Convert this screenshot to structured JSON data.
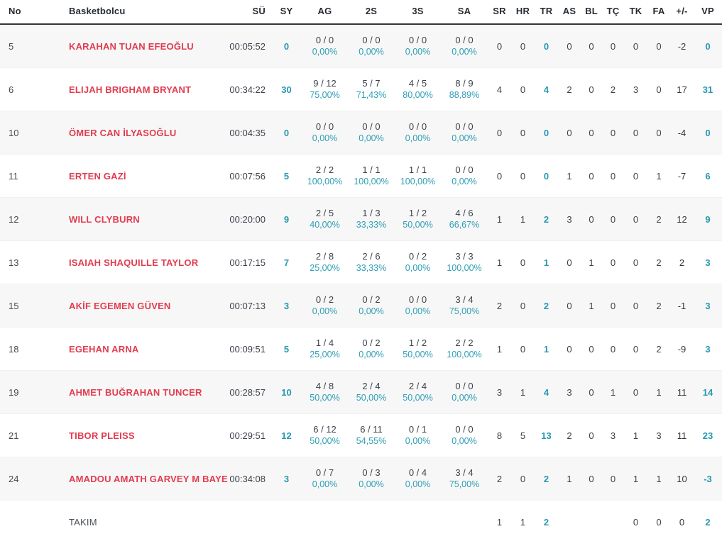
{
  "colors": {
    "accent_teal": "#2798b0",
    "percentage_teal": "#2f9fb6",
    "player_name_red": "#e23c50",
    "text_dark": "#3c414b",
    "header_text": "#262b33",
    "header_border": "#33343a",
    "row_alt_background": "#f7f7f7"
  },
  "table": {
    "columns": [
      {
        "key": "no",
        "label": "No"
      },
      {
        "key": "name",
        "label": "Basketbolcu"
      },
      {
        "key": "su",
        "label": "SÜ"
      },
      {
        "key": "sy",
        "label": "SY"
      },
      {
        "key": "ag",
        "label": "AG"
      },
      {
        "key": "s2",
        "label": "2S"
      },
      {
        "key": "s3",
        "label": "3S"
      },
      {
        "key": "sa",
        "label": "SA"
      },
      {
        "key": "sr",
        "label": "SR"
      },
      {
        "key": "hr",
        "label": "HR"
      },
      {
        "key": "tr",
        "label": "TR"
      },
      {
        "key": "as",
        "label": "AS"
      },
      {
        "key": "bl",
        "label": "BL"
      },
      {
        "key": "tc",
        "label": "TÇ"
      },
      {
        "key": "tk",
        "label": "TK"
      },
      {
        "key": "fa",
        "label": "FA"
      },
      {
        "key": "pm",
        "label": "+/-"
      },
      {
        "key": "vp",
        "label": "VP"
      }
    ],
    "rows": [
      {
        "type": "player",
        "no": "5",
        "name": "KARAHAN TUAN EFEOĞLU",
        "su": "00:05:52",
        "sy": "0",
        "ag": {
          "made": "0 / 0",
          "pct": "0,00%"
        },
        "s2": {
          "made": "0 / 0",
          "pct": "0,00%"
        },
        "s3": {
          "made": "0 / 0",
          "pct": "0,00%"
        },
        "sa": {
          "made": "0 / 0",
          "pct": "0,00%"
        },
        "sr": "0",
        "hr": "0",
        "tr": "0",
        "as": "0",
        "bl": "0",
        "tc": "0",
        "tk": "0",
        "fa": "0",
        "pm": "-2",
        "vp": "0"
      },
      {
        "type": "player",
        "no": "6",
        "name": "ELIJAH BRIGHAM BRYANT",
        "su": "00:34:22",
        "sy": "30",
        "ag": {
          "made": "9 / 12",
          "pct": "75,00%"
        },
        "s2": {
          "made": "5 / 7",
          "pct": "71,43%"
        },
        "s3": {
          "made": "4 / 5",
          "pct": "80,00%"
        },
        "sa": {
          "made": "8 / 9",
          "pct": "88,89%"
        },
        "sr": "4",
        "hr": "0",
        "tr": "4",
        "as": "2",
        "bl": "0",
        "tc": "2",
        "tk": "3",
        "fa": "0",
        "pm": "17",
        "vp": "31"
      },
      {
        "type": "player",
        "no": "10",
        "name": "ÖMER CAN İLYASOĞLU",
        "su": "00:04:35",
        "sy": "0",
        "ag": {
          "made": "0 / 0",
          "pct": "0,00%"
        },
        "s2": {
          "made": "0 / 0",
          "pct": "0,00%"
        },
        "s3": {
          "made": "0 / 0",
          "pct": "0,00%"
        },
        "sa": {
          "made": "0 / 0",
          "pct": "0,00%"
        },
        "sr": "0",
        "hr": "0",
        "tr": "0",
        "as": "0",
        "bl": "0",
        "tc": "0",
        "tk": "0",
        "fa": "0",
        "pm": "-4",
        "vp": "0"
      },
      {
        "type": "player",
        "no": "11",
        "name": "ERTEN GAZİ",
        "su": "00:07:56",
        "sy": "5",
        "ag": {
          "made": "2 / 2",
          "pct": "100,00%"
        },
        "s2": {
          "made": "1 / 1",
          "pct": "100,00%"
        },
        "s3": {
          "made": "1 / 1",
          "pct": "100,00%"
        },
        "sa": {
          "made": "0 / 0",
          "pct": "0,00%"
        },
        "sr": "0",
        "hr": "0",
        "tr": "0",
        "as": "1",
        "bl": "0",
        "tc": "0",
        "tk": "0",
        "fa": "1",
        "pm": "-7",
        "vp": "6"
      },
      {
        "type": "player",
        "no": "12",
        "name": "WILL CLYBURN",
        "su": "00:20:00",
        "sy": "9",
        "ag": {
          "made": "2 / 5",
          "pct": "40,00%"
        },
        "s2": {
          "made": "1 / 3",
          "pct": "33,33%"
        },
        "s3": {
          "made": "1 / 2",
          "pct": "50,00%"
        },
        "sa": {
          "made": "4 / 6",
          "pct": "66,67%"
        },
        "sr": "1",
        "hr": "1",
        "tr": "2",
        "as": "3",
        "bl": "0",
        "tc": "0",
        "tk": "0",
        "fa": "2",
        "pm": "12",
        "vp": "9"
      },
      {
        "type": "player",
        "no": "13",
        "name": "ISAIAH SHAQUILLE TAYLOR",
        "su": "00:17:15",
        "sy": "7",
        "ag": {
          "made": "2 / 8",
          "pct": "25,00%"
        },
        "s2": {
          "made": "2 / 6",
          "pct": "33,33%"
        },
        "s3": {
          "made": "0 / 2",
          "pct": "0,00%"
        },
        "sa": {
          "made": "3 / 3",
          "pct": "100,00%"
        },
        "sr": "1",
        "hr": "0",
        "tr": "1",
        "as": "0",
        "bl": "1",
        "tc": "0",
        "tk": "0",
        "fa": "2",
        "pm": "2",
        "vp": "3"
      },
      {
        "type": "player",
        "no": "15",
        "name": "AKİF EGEMEN GÜVEN",
        "su": "00:07:13",
        "sy": "3",
        "ag": {
          "made": "0 / 2",
          "pct": "0,00%"
        },
        "s2": {
          "made": "0 / 2",
          "pct": "0,00%"
        },
        "s3": {
          "made": "0 / 0",
          "pct": "0,00%"
        },
        "sa": {
          "made": "3 / 4",
          "pct": "75,00%"
        },
        "sr": "2",
        "hr": "0",
        "tr": "2",
        "as": "0",
        "bl": "1",
        "tc": "0",
        "tk": "0",
        "fa": "2",
        "pm": "-1",
        "vp": "3"
      },
      {
        "type": "player",
        "no": "18",
        "name": "EGEHAN ARNA",
        "su": "00:09:51",
        "sy": "5",
        "ag": {
          "made": "1 / 4",
          "pct": "25,00%"
        },
        "s2": {
          "made": "0 / 2",
          "pct": "0,00%"
        },
        "s3": {
          "made": "1 / 2",
          "pct": "50,00%"
        },
        "sa": {
          "made": "2 / 2",
          "pct": "100,00%"
        },
        "sr": "1",
        "hr": "0",
        "tr": "1",
        "as": "0",
        "bl": "0",
        "tc": "0",
        "tk": "0",
        "fa": "2",
        "pm": "-9",
        "vp": "3"
      },
      {
        "type": "player",
        "no": "19",
        "name": "AHMET BUĞRAHAN TUNCER",
        "su": "00:28:57",
        "sy": "10",
        "ag": {
          "made": "4 / 8",
          "pct": "50,00%"
        },
        "s2": {
          "made": "2 / 4",
          "pct": "50,00%"
        },
        "s3": {
          "made": "2 / 4",
          "pct": "50,00%"
        },
        "sa": {
          "made": "0 / 0",
          "pct": "0,00%"
        },
        "sr": "3",
        "hr": "1",
        "tr": "4",
        "as": "3",
        "bl": "0",
        "tc": "1",
        "tk": "0",
        "fa": "1",
        "pm": "11",
        "vp": "14"
      },
      {
        "type": "player",
        "no": "21",
        "name": "TIBOR PLEISS",
        "su": "00:29:51",
        "sy": "12",
        "ag": {
          "made": "6 / 12",
          "pct": "50,00%"
        },
        "s2": {
          "made": "6 / 11",
          "pct": "54,55%"
        },
        "s3": {
          "made": "0 / 1",
          "pct": "0,00%"
        },
        "sa": {
          "made": "0 / 0",
          "pct": "0,00%"
        },
        "sr": "8",
        "hr": "5",
        "tr": "13",
        "as": "2",
        "bl": "0",
        "tc": "3",
        "tk": "1",
        "fa": "3",
        "pm": "11",
        "vp": "23"
      },
      {
        "type": "player",
        "no": "24",
        "name": "AMADOU AMATH GARVEY M BAYE",
        "su": "00:34:08",
        "sy": "3",
        "ag": {
          "made": "0 / 7",
          "pct": "0,00%"
        },
        "s2": {
          "made": "0 / 3",
          "pct": "0,00%"
        },
        "s3": {
          "made": "0 / 4",
          "pct": "0,00%"
        },
        "sa": {
          "made": "3 / 4",
          "pct": "75,00%"
        },
        "sr": "2",
        "hr": "0",
        "tr": "2",
        "as": "1",
        "bl": "0",
        "tc": "0",
        "tk": "1",
        "fa": "1",
        "pm": "10",
        "vp": "-3"
      },
      {
        "type": "team",
        "no": "",
        "name": "TAKIM",
        "su": "",
        "sy": "",
        "ag": {
          "made": "",
          "pct": ""
        },
        "s2": {
          "made": "",
          "pct": ""
        },
        "s3": {
          "made": "",
          "pct": ""
        },
        "sa": {
          "made": "",
          "pct": ""
        },
        "sr": "1",
        "hr": "1",
        "tr": "2",
        "as": "",
        "bl": "",
        "tc": "",
        "tk": "0",
        "fa": "0",
        "pm": "0",
        "vp": "2"
      }
    ]
  }
}
